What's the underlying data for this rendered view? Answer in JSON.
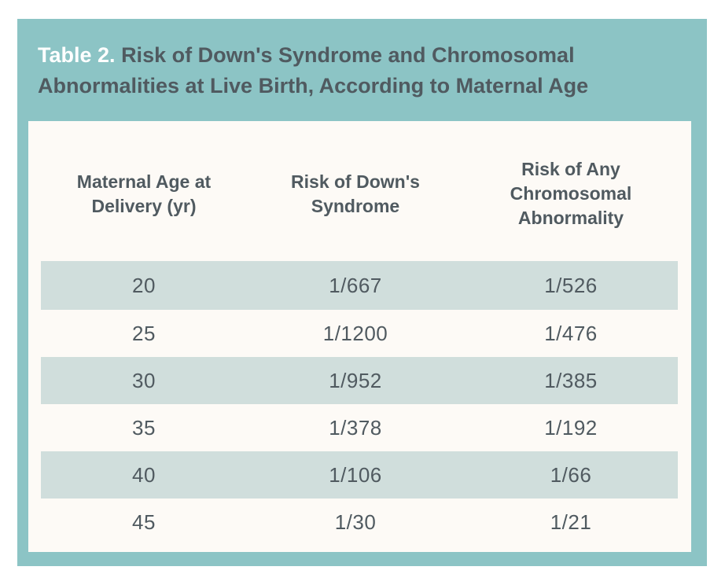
{
  "title": {
    "label": "Table 2.",
    "text": "Risk of Down's Syndrome and Chromosomal Abnormalities at Live Birth, According to Maternal Age"
  },
  "table": {
    "headers": [
      "Maternal Age at Delivery (yr)",
      "Risk of Down's Syndrome",
      "Risk of Any Chromosomal Abnormality"
    ],
    "rows": [
      [
        "20",
        "1/667",
        "1/526"
      ],
      [
        "25",
        "1/1200",
        "1/476"
      ],
      [
        "30",
        "1/952",
        "1/385"
      ],
      [
        "35",
        "1/378",
        "1/192"
      ],
      [
        "40",
        "1/106",
        "1/66"
      ],
      [
        "45",
        "1/30",
        "1/21"
      ]
    ]
  },
  "colors": {
    "frame": "#8cc4c5",
    "panel": "#fdfaf6",
    "row_shade": "#d0dedc",
    "text": "#505a60",
    "title_label": "#ffffff"
  }
}
